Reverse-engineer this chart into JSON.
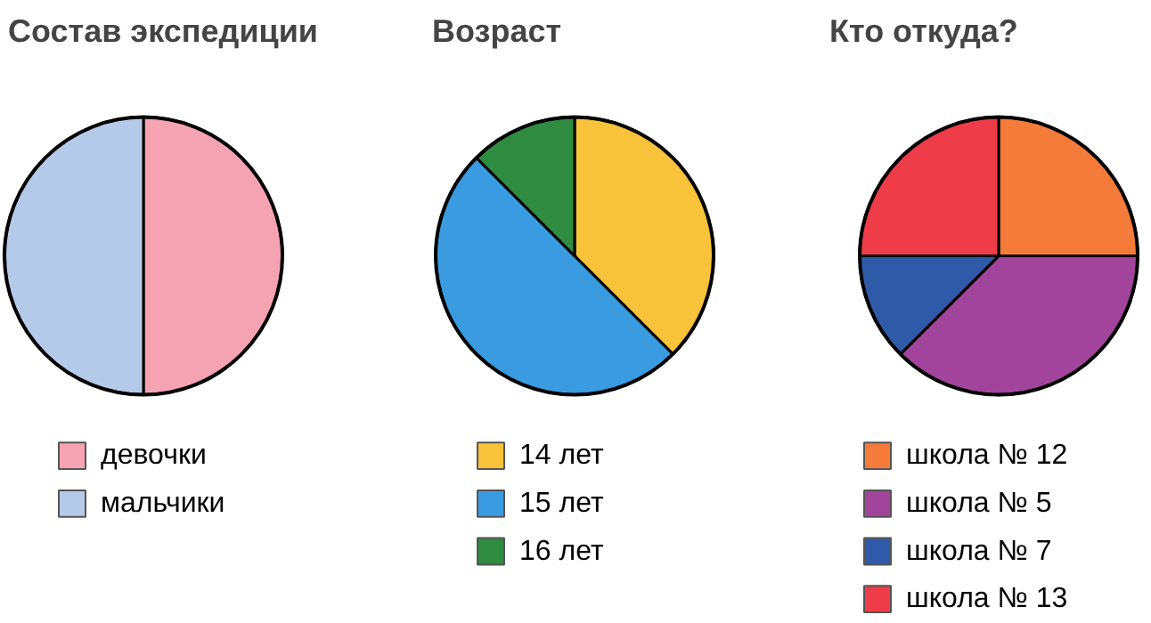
{
  "chart_data": [
    {
      "type": "pie",
      "title": "Состав  экспедиции",
      "categories": [
        "девочки",
        "мальчики"
      ],
      "values": [
        50,
        50
      ],
      "colors": [
        "#f5a3b3",
        "#b5c9e9"
      ],
      "legend": "bottom"
    },
    {
      "type": "pie",
      "title": "Возраст",
      "categories": [
        "14 лет",
        "15 лет",
        "16 лет"
      ],
      "values": [
        37.5,
        50,
        12.5
      ],
      "colors": [
        "#f8c23a",
        "#3a9be0",
        "#2f8b40"
      ],
      "legend": "bottom"
    },
    {
      "type": "pie",
      "title": "Кто откуда?",
      "categories": [
        "школа № 12",
        "школа № 5",
        "школа № 7",
        "школа № 13"
      ],
      "values": [
        25,
        37.5,
        12.5,
        25
      ],
      "colors": [
        "#f57b3b",
        "#a2449c",
        "#2f5aa8",
        "#ee3d48"
      ],
      "legend": "bottom"
    }
  ]
}
